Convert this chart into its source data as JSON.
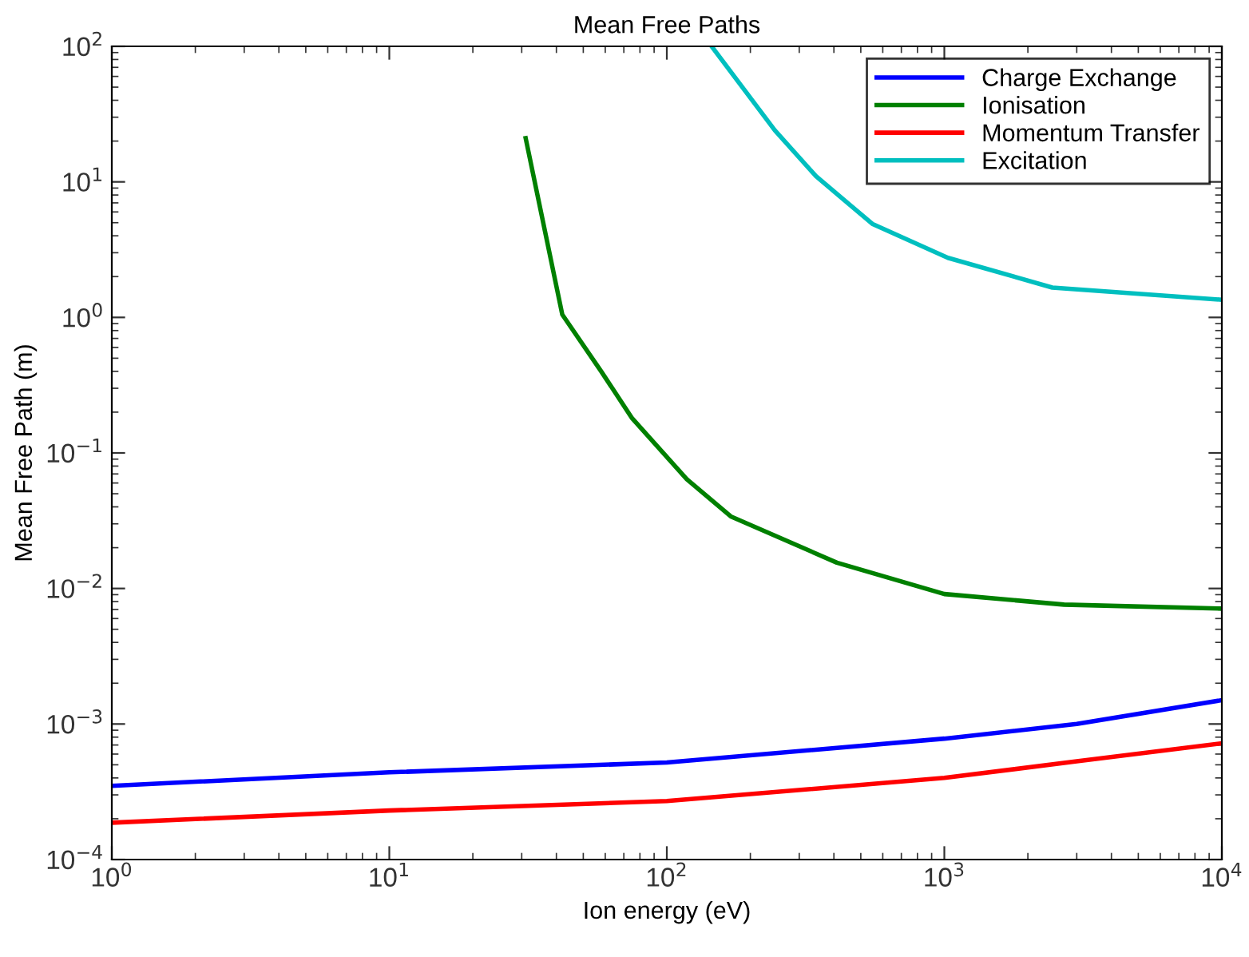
{
  "chart_data": {
    "type": "line",
    "title": "Mean Free Paths",
    "xlabel": "Ion energy (eV)",
    "ylabel": "Mean Free Path (m)",
    "log": "xy",
    "grid": false,
    "legend": "top right",
    "line_style": "solid",
    "marker": "none",
    "xlim": [
      1,
      10000
    ],
    "ylim": [
      0.0001,
      100
    ],
    "xticks": [
      {
        "value": 1,
        "label": "10$^{0}$"
      },
      {
        "value": 10,
        "label": "10$^{1}$"
      },
      {
        "value": 100,
        "label": "10$^{2}$"
      },
      {
        "value": 1000,
        "label": "10$^{3}$"
      },
      {
        "value": 10000,
        "label": "10$^{4}$"
      }
    ],
    "yticks": [
      {
        "value": 0.0001,
        "label": "10$^{−4}$"
      },
      {
        "value": 0.001,
        "label": "10$^{−3}$"
      },
      {
        "value": 0.01,
        "label": "10$^{−2}$"
      },
      {
        "value": 0.1,
        "label": "10$^{−1}$"
      },
      {
        "value": 1,
        "label": "10$^{0}$"
      },
      {
        "value": 10,
        "label": "10$^{1}$"
      },
      {
        "value": 100,
        "label": "10$^{2}$"
      }
    ],
    "series": [
      {
        "name": "Charge Exchange",
        "color": "#0000ff",
        "x": [
          1,
          10,
          100,
          1000,
          3000,
          10000
        ],
        "values": [
          0.00035,
          0.00044,
          0.00052,
          0.00078,
          0.001,
          0.0015
        ]
      },
      {
        "name": "Ionisation",
        "color": "#008000",
        "x": [
          31,
          42,
          58,
          75,
          118,
          170,
          410,
          1000,
          2700,
          10000
        ],
        "values": [
          21,
          1.05,
          0.4,
          0.18,
          0.064,
          0.034,
          0.0155,
          0.0091,
          0.0076,
          0.0071
        ]
      },
      {
        "name": "Momentum Transfer",
        "color": "#ff0000",
        "x": [
          1,
          10,
          100,
          1000,
          3000,
          10000
        ],
        "values": [
          0.000187,
          0.00023,
          0.00027,
          0.0004,
          0.00053,
          0.00072
        ]
      },
      {
        "name": "Excitation",
        "color": "#00bfbf",
        "x": [
          145,
          245,
          345,
          550,
          1030,
          2450,
          10000
        ],
        "values": [
          100,
          24,
          11,
          4.9,
          2.75,
          1.66,
          1.35
        ]
      }
    ]
  }
}
